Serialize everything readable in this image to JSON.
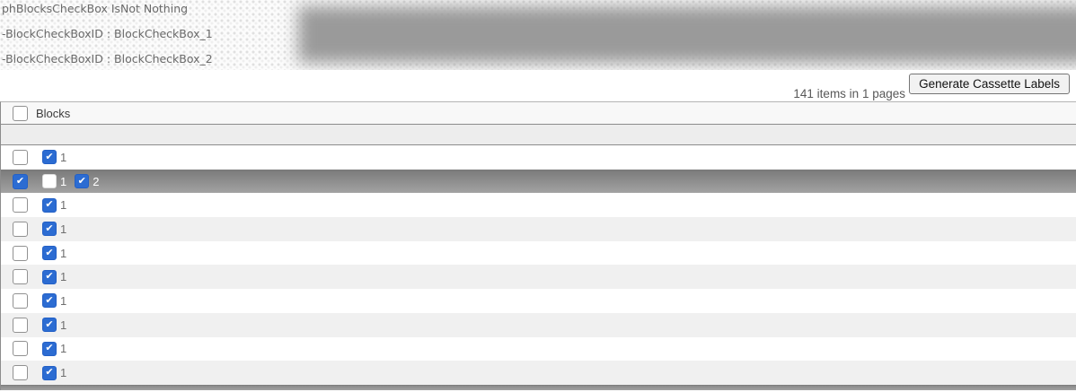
{
  "debug": {
    "lines": [
      "phBlocksCheckBox IsNot Nothing",
      "-BlockCheckBoxID : BlockCheckBox_1",
      "-BlockCheckBoxID : BlockCheckBox_2"
    ]
  },
  "toolbar": {
    "items_summary": "141 items in 1 pages",
    "generate_button_label": "Generate Cassette Labels"
  },
  "icons": {
    "checkmark": "✔"
  },
  "colors": {
    "accent_blue": "#2c6cd2",
    "selected_row_top": "#7a7a7a",
    "selected_row_bottom": "#a2a2a2",
    "overlay_gray": "#9a9a9a"
  },
  "grid": {
    "select_all_checked": false,
    "columns": [
      {
        "label": "Blocks"
      }
    ],
    "rows": [
      {
        "selected": false,
        "row_checked": false,
        "blocks": [
          {
            "checked": true,
            "label": "1"
          }
        ]
      },
      {
        "selected": true,
        "row_checked": true,
        "blocks": [
          {
            "checked": false,
            "label": "1"
          },
          {
            "checked": true,
            "label": "2"
          }
        ]
      },
      {
        "selected": false,
        "row_checked": false,
        "blocks": [
          {
            "checked": true,
            "label": "1"
          }
        ]
      },
      {
        "selected": false,
        "row_checked": false,
        "blocks": [
          {
            "checked": true,
            "label": "1"
          }
        ]
      },
      {
        "selected": false,
        "row_checked": false,
        "blocks": [
          {
            "checked": true,
            "label": "1"
          }
        ]
      },
      {
        "selected": false,
        "row_checked": false,
        "blocks": [
          {
            "checked": true,
            "label": "1"
          }
        ]
      },
      {
        "selected": false,
        "row_checked": false,
        "blocks": [
          {
            "checked": true,
            "label": "1"
          }
        ]
      },
      {
        "selected": false,
        "row_checked": false,
        "blocks": [
          {
            "checked": true,
            "label": "1"
          }
        ]
      },
      {
        "selected": false,
        "row_checked": false,
        "blocks": [
          {
            "checked": true,
            "label": "1"
          }
        ]
      },
      {
        "selected": false,
        "row_checked": false,
        "blocks": [
          {
            "checked": true,
            "label": "1"
          }
        ]
      }
    ]
  }
}
